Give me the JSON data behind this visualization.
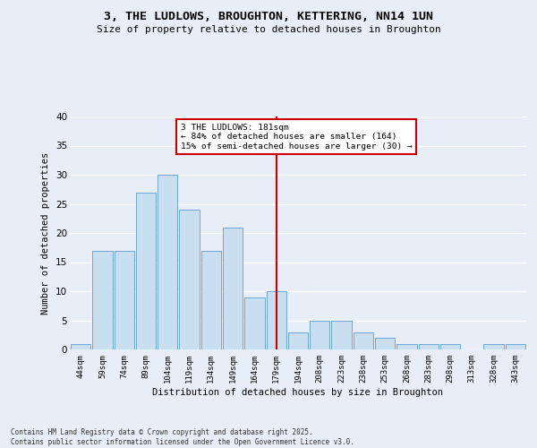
{
  "title": "3, THE LUDLOWS, BROUGHTON, KETTERING, NN14 1UN",
  "subtitle": "Size of property relative to detached houses in Broughton",
  "xlabel": "Distribution of detached houses by size in Broughton",
  "ylabel": "Number of detached properties",
  "categories": [
    "44sqm",
    "59sqm",
    "74sqm",
    "89sqm",
    "104sqm",
    "119sqm",
    "134sqm",
    "149sqm",
    "164sqm",
    "179sqm",
    "194sqm",
    "208sqm",
    "223sqm",
    "238sqm",
    "253sqm",
    "268sqm",
    "283sqm",
    "298sqm",
    "313sqm",
    "328sqm",
    "343sqm"
  ],
  "values": [
    1,
    17,
    17,
    27,
    30,
    24,
    17,
    21,
    9,
    10,
    3,
    5,
    5,
    3,
    2,
    1,
    1,
    1,
    0,
    1,
    1
  ],
  "bar_color": "#c9dff0",
  "bar_edge_color": "#5b9bd5",
  "vline_x_index": 9,
  "vline_color": "#cc0000",
  "annotation_text": "3 THE LUDLOWS: 181sqm\n← 84% of detached houses are smaller (164)\n15% of semi-detached houses are larger (30) →",
  "annotation_box_color": "#ffffff",
  "annotation_box_edge": "#cc0000",
  "background_color": "#e8eef7",
  "grid_color": "#ffffff",
  "ylim": [
    0,
    40
  ],
  "yticks": [
    0,
    5,
    10,
    15,
    20,
    25,
    30,
    35,
    40
  ],
  "footer_line1": "Contains HM Land Registry data © Crown copyright and database right 2025.",
  "footer_line2": "Contains public sector information licensed under the Open Government Licence v3.0."
}
